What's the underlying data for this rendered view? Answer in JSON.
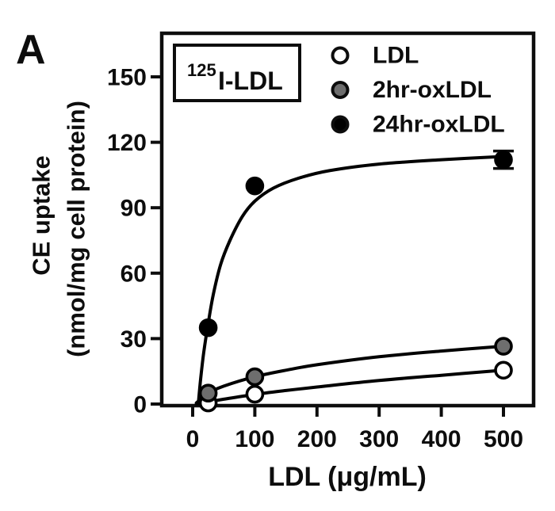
{
  "panel_label": "A",
  "inset_box": {
    "superscript": "125",
    "label": "I-LDL"
  },
  "legend": {
    "items": [
      {
        "label": "LDL",
        "marker": "open-circle",
        "fill": "#ffffff"
      },
      {
        "label": "2hr-oxLDL",
        "marker": "gray-circle",
        "fill": "#6e6e6e"
      },
      {
        "label": "24hr-oxLDL",
        "marker": "black-circle",
        "fill": "#000000"
      }
    ]
  },
  "chart_data": {
    "type": "scatter",
    "title": "",
    "xlabel": "LDL (μg/mL)",
    "ylabel": "CE uptake (nmol/mg cell protein)",
    "ylabel_line1": "CE uptake",
    "ylabel_line2": "(nmol/mg cell protein)",
    "x_ticks": [
      0,
      100,
      200,
      300,
      400,
      500
    ],
    "y_ticks": [
      0,
      30,
      60,
      90,
      120,
      150
    ],
    "xlim": [
      0,
      548
    ],
    "ylim": [
      0,
      170
    ],
    "grid": false,
    "legend_position": "top-right-inside",
    "axis_color": "#0d0d0d",
    "series": [
      {
        "name": "LDL",
        "color": "#ffffff",
        "stroke": "#000000",
        "points": [
          [
            25,
            0.5
          ],
          [
            100,
            4.5
          ],
          [
            500,
            15.5
          ]
        ],
        "fit_curve": [
          [
            6,
            0
          ],
          [
            25,
            1
          ],
          [
            50,
            2.2
          ],
          [
            100,
            4.4
          ],
          [
            150,
            6.2
          ],
          [
            200,
            7.8
          ],
          [
            300,
            10.8
          ],
          [
            400,
            13.2
          ],
          [
            500,
            15.5
          ]
        ]
      },
      {
        "name": "2hr-oxLDL",
        "color": "#6e6e6e",
        "stroke": "#000000",
        "points": [
          [
            25,
            5
          ],
          [
            100,
            12.5
          ],
          [
            500,
            26.5
          ]
        ],
        "fit_curve": [
          [
            6,
            0.5
          ],
          [
            25,
            5
          ],
          [
            50,
            8.2
          ],
          [
            100,
            12.5
          ],
          [
            150,
            15.5
          ],
          [
            200,
            18
          ],
          [
            300,
            21.7
          ],
          [
            400,
            24.3
          ],
          [
            500,
            26.5
          ]
        ]
      },
      {
        "name": "24hr-oxLDL",
        "color": "#000000",
        "stroke": "#000000",
        "points": [
          [
            25,
            35
          ],
          [
            100,
            100
          ],
          [
            500,
            112
          ]
        ],
        "error_bars": [
          {
            "x": 500,
            "y": 112,
            "plus": 4,
            "minus": 4
          }
        ],
        "fit_curve": [
          [
            9,
            0
          ],
          [
            13,
            12
          ],
          [
            18,
            24
          ],
          [
            25,
            37
          ],
          [
            33,
            50
          ],
          [
            45,
            64
          ],
          [
            60,
            75
          ],
          [
            80,
            86
          ],
          [
            100,
            93
          ],
          [
            130,
            99
          ],
          [
            170,
            103.5
          ],
          [
            220,
            107
          ],
          [
            300,
            110
          ],
          [
            400,
            112
          ],
          [
            500,
            113.5
          ]
        ]
      }
    ]
  }
}
